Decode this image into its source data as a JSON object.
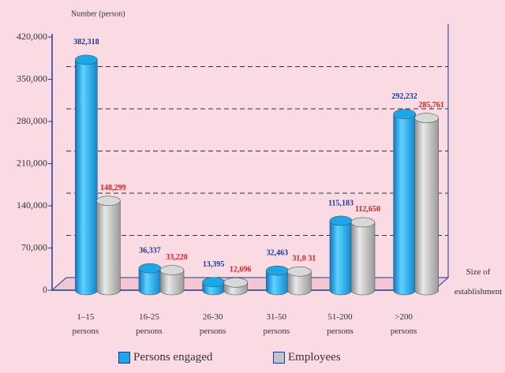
{
  "chart_data": {
    "type": "bar",
    "y_label": "Number (person)",
    "x_label": "Size of establishment",
    "categories": [
      "1–15 persons",
      "16-25 persons",
      "26-30 persons",
      "31-50 persons",
      "51-200 persons",
      ">200 persons"
    ],
    "series": [
      {
        "name": "Persons engaged",
        "color": "#1aa8e8",
        "label_color": "#1a3a9a",
        "values": [
          382318,
          36337,
          13395,
          32463,
          115183,
          292232
        ],
        "value_labels": [
          "382,318",
          "36,337",
          "13,395",
          "32,463",
          "115,183",
          "292,232"
        ]
      },
      {
        "name": "Employees",
        "color": "#c4c4c4",
        "label_color": "#e02020",
        "values": [
          148299,
          33220,
          12696,
          31031,
          112650,
          285761
        ],
        "value_labels": [
          "148,299",
          "33,220",
          "12,696",
          "31,0 31",
          "112,650",
          "285,761"
        ]
      }
    ],
    "ylim": [
      0,
      420000
    ],
    "yticks": [
      0,
      {
        "value": 70000,
        "label": "70,000"
      },
      {
        "value": 140000,
        "label": "140,000"
      },
      {
        "value": 210000,
        "label": "210,000"
      },
      {
        "value": 280000,
        "label": "280,000"
      },
      {
        "value": 350000,
        "label": "350,000"
      },
      {
        "value": 420000,
        "label": "420,000"
      }
    ],
    "grid": true
  }
}
